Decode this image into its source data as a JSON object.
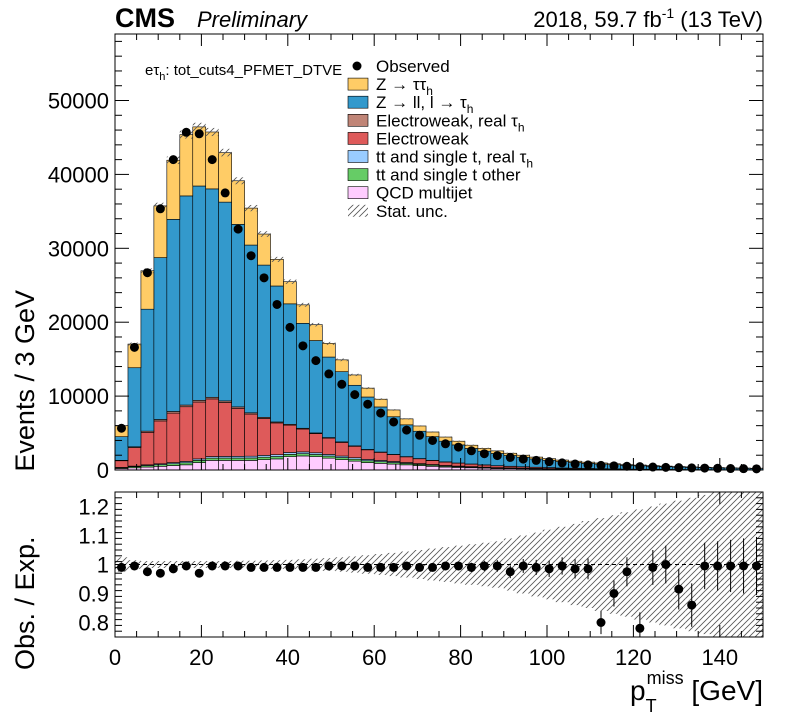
{
  "header": {
    "cms": "CMS",
    "prelim": "Preliminary",
    "lumi_pre": "2018, 59.7 fb",
    "lumi_exp": "-1",
    "lumi_post": " (13 TeV)"
  },
  "channel": {
    "prefix": "eτ",
    "sub": "h",
    "rest": ": tot_cuts4_PFMET_DTVE"
  },
  "colors": {
    "ztt": "#ffcc66",
    "zll": "#3399cc",
    "ew_real": "#c08577",
    "ew": "#de5a5a",
    "tt_real": "#99ccff",
    "tt_other": "#66cc66",
    "qcd": "#ffccff",
    "data": "#000000"
  },
  "legend": {
    "items": [
      {
        "key": "data",
        "pre": "Observed",
        "sub": "",
        "post": ""
      },
      {
        "key": "ztt",
        "pre": "Z → ττ",
        "sub": "h",
        "post": ""
      },
      {
        "key": "zll",
        "pre": "Z → ll, l → τ",
        "sub": "h",
        "post": ""
      },
      {
        "key": "ew_real",
        "pre": "Electroweak, real  τ",
        "sub": "h",
        "post": ""
      },
      {
        "key": "ew",
        "pre": "Electroweak",
        "sub": "",
        "post": ""
      },
      {
        "key": "tt_real",
        "pre": "tt and single t, real  τ",
        "sub": "h",
        "post": ""
      },
      {
        "key": "tt_other",
        "pre": "tt and single t other",
        "sub": "",
        "post": ""
      },
      {
        "key": "qcd",
        "pre": "QCD multijet",
        "sub": "",
        "post": ""
      },
      {
        "key": "unc",
        "pre": "Stat. unc.",
        "sub": "",
        "post": ""
      }
    ]
  },
  "chart_data": {
    "type": "bar",
    "stacked": true,
    "xlabel_main": "p",
    "xlabel_sub": "T",
    "xlabel_sup": "miss",
    "xlabel_unit": " [GeV]",
    "ylabel_top": "Events / 3 GeV",
    "ylabel_ratio": "Obs. / Exp.",
    "xlim": [
      0,
      150
    ],
    "ylim": [
      0,
      59000
    ],
    "ratio_ylim": [
      0.75,
      1.25
    ],
    "bin_width": 3,
    "x_ticks": [
      0,
      20,
      40,
      60,
      80,
      100,
      120,
      140
    ],
    "y_ticks": [
      0,
      10000,
      20000,
      30000,
      40000,
      50000
    ],
    "ratio_ticks": [
      0.8,
      0.9,
      1,
      1.1,
      1.2
    ],
    "x_tick_labels": [
      "0",
      "20",
      "40",
      "60",
      "80",
      "100",
      "120",
      "140"
    ],
    "y_tick_labels": [
      "0",
      "10000",
      "20000",
      "30000",
      "40000",
      "50000"
    ],
    "ratio_tick_labels": [
      "0.8",
      "0.9",
      "1",
      "1.1",
      "1.2"
    ],
    "series": [
      {
        "name": "QCD multijet",
        "key": "qcd",
        "values": [
          200,
          300,
          400,
          500,
          600,
          700,
          1000,
          1300,
          1300,
          1300,
          1300,
          1400,
          1500,
          1800,
          1900,
          1800,
          1600,
          1400,
          1200,
          1000,
          900,
          800,
          700,
          600,
          500,
          400,
          350,
          300,
          250,
          200,
          180,
          160,
          140,
          120,
          100,
          90,
          80,
          70,
          60,
          50,
          45,
          40,
          35,
          30,
          25,
          20,
          18,
          16,
          14,
          12
        ]
      },
      {
        "name": "tt and single t other",
        "key": "tt_other",
        "values": [
          100,
          150,
          200,
          220,
          250,
          280,
          300,
          310,
          320,
          320,
          330,
          330,
          320,
          320,
          310,
          300,
          290,
          280,
          260,
          250,
          230,
          210,
          190,
          170,
          150,
          130,
          110,
          100,
          90,
          80,
          70,
          60,
          50,
          45,
          40,
          35,
          30,
          25,
          20,
          18,
          16,
          14,
          12,
          10,
          9,
          8,
          7,
          6,
          5,
          4
        ]
      },
      {
        "name": "tt and single t, real  τh",
        "key": "tt_real",
        "values": [
          50,
          80,
          100,
          120,
          150,
          180,
          200,
          210,
          220,
          230,
          240,
          250,
          250,
          250,
          240,
          230,
          220,
          210,
          200,
          180,
          160,
          140,
          120,
          100,
          90,
          80,
          70,
          60,
          50,
          45,
          40,
          35,
          30,
          25,
          20,
          18,
          16,
          14,
          12,
          10,
          9,
          8,
          7,
          6,
          5,
          4,
          3,
          3,
          2,
          2
        ]
      },
      {
        "name": "Electroweak",
        "key": "ew",
        "values": [
          900,
          2500,
          4400,
          5800,
          6700,
          7400,
          7700,
          7800,
          7300,
          6500,
          5700,
          5000,
          4300,
          3700,
          3100,
          2600,
          2200,
          1850,
          1550,
          1300,
          1100,
          920,
          770,
          650,
          550,
          470,
          400,
          340,
          290,
          250,
          210,
          180,
          150,
          130,
          110,
          95,
          80,
          70,
          60,
          52,
          45,
          40,
          35,
          30,
          26,
          22,
          19,
          16,
          14,
          12
        ]
      },
      {
        "name": "Electroweak, real  τh",
        "key": "ew_real",
        "values": [
          60,
          110,
          160,
          200,
          220,
          230,
          230,
          220,
          210,
          190,
          170,
          150,
          130,
          115,
          100,
          85,
          75,
          65,
          55,
          48,
          42,
          36,
          31,
          27,
          23,
          20,
          17,
          15,
          13,
          11,
          10,
          9,
          8,
          7,
          6,
          5,
          5,
          4,
          4,
          3,
          3,
          3,
          2,
          2,
          2,
          2,
          1,
          1,
          1,
          1
        ]
      },
      {
        "name": "Z → ll, l → τh",
        "key": "zll",
        "values": [
          3200,
          10700,
          16500,
          21900,
          26000,
          28300,
          29000,
          28200,
          26900,
          24700,
          22700,
          20600,
          18400,
          16300,
          14200,
          12500,
          10900,
          9500,
          8200,
          7100,
          6100,
          5100,
          4300,
          3700,
          3200,
          2800,
          2450,
          2100,
          1850,
          1650,
          1450,
          1280,
          1120,
          990,
          870,
          770,
          690,
          620,
          560,
          500,
          450,
          400,
          360,
          320,
          290,
          260,
          230,
          210,
          190,
          170
        ]
      },
      {
        "name": "Z → ττh",
        "key": "ztt",
        "values": [
          1500,
          3200,
          5200,
          7000,
          8000,
          8300,
          8000,
          7700,
          6700,
          5900,
          5000,
          4200,
          3600,
          3000,
          2500,
          2150,
          1850,
          1600,
          1400,
          1200,
          1050,
          920,
          810,
          710,
          630,
          560,
          500,
          440,
          390,
          350,
          310,
          280,
          250,
          225,
          200,
          180,
          160,
          145,
          130,
          115,
          100,
          90,
          80,
          70,
          60,
          55,
          50,
          45,
          40,
          35
        ]
      }
    ],
    "observed": [
      5650,
      16600,
      26700,
      35350,
      42000,
      45700,
      45500,
      42000,
      37500,
      32600,
      29000,
      26000,
      22400,
      19300,
      16800,
      14800,
      13000,
      11600,
      10200,
      8900,
      7700,
      6500,
      5400,
      4700,
      4000,
      3550,
      3100,
      2600,
      2200,
      1950,
      1700,
      1480,
      1300,
      1130,
      960,
      810,
      690,
      620,
      560,
      500,
      450,
      400,
      355,
      315,
      280,
      255,
      230,
      200,
      180,
      155
    ],
    "ratio": [
      0.99,
      0.995,
      0.975,
      0.97,
      0.985,
      0.995,
      0.97,
      0.995,
      0.995,
      0.995,
      0.99,
      0.99,
      0.99,
      0.99,
      0.99,
      0.99,
      0.995,
      0.995,
      0.995,
      0.99,
      0.99,
      0.99,
      0.995,
      0.99,
      0.99,
      0.995,
      0.995,
      0.99,
      0.995,
      0.995,
      0.975,
      0.995,
      0.99,
      0.985,
      0.995,
      0.985,
      0.985,
      0.8,
      0.9,
      0.975,
      0.78,
      0.99,
      1.0,
      0.915,
      0.86,
      0.995,
      0.995,
      0.995,
      0.995,
      0.995
    ],
    "ratio_err": [
      0.008,
      0.006,
      0.006,
      0.005,
      0.005,
      0.005,
      0.005,
      0.005,
      0.005,
      0.006,
      0.006,
      0.006,
      0.006,
      0.006,
      0.007,
      0.007,
      0.007,
      0.008,
      0.008,
      0.009,
      0.01,
      0.01,
      0.011,
      0.012,
      0.013,
      0.014,
      0.015,
      0.016,
      0.018,
      0.02,
      0.022,
      0.024,
      0.026,
      0.028,
      0.03,
      0.033,
      0.036,
      0.04,
      0.045,
      0.05,
      0.055,
      0.06,
      0.065,
      0.07,
      0.075,
      0.08,
      0.085,
      0.09,
      0.095,
      0.1
    ],
    "ratio_unc": [
      0.025,
      0.015,
      0.012,
      0.012,
      0.012,
      0.012,
      0.012,
      0.012,
      0.012,
      0.013,
      0.013,
      0.014,
      0.015,
      0.016,
      0.018,
      0.02,
      0.022,
      0.025,
      0.028,
      0.032,
      0.036,
      0.04,
      0.045,
      0.05,
      0.055,
      0.06,
      0.065,
      0.07,
      0.075,
      0.08,
      0.09,
      0.1,
      0.11,
      0.12,
      0.13,
      0.14,
      0.15,
      0.16,
      0.17,
      0.18,
      0.19,
      0.2,
      0.21,
      0.22,
      0.23,
      0.24,
      0.25,
      0.25,
      0.25,
      0.25
    ]
  }
}
